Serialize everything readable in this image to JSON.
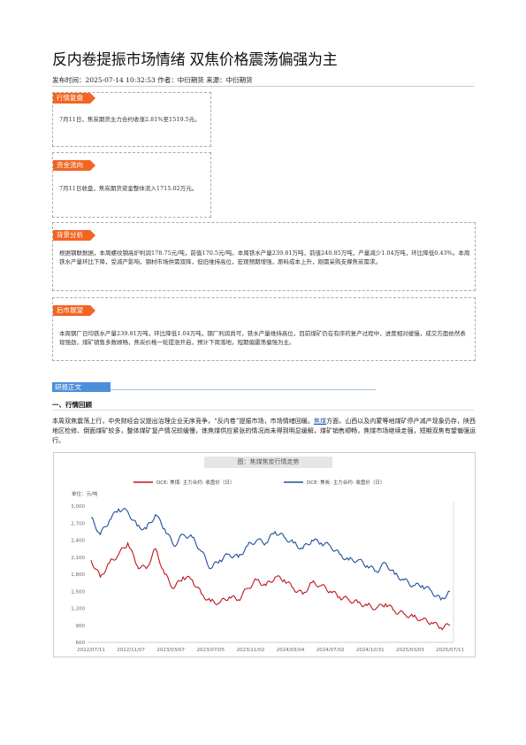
{
  "article": {
    "title": "反内卷提振市场情绪 双焦价格震荡偏强为主",
    "meta": "发布时间：2025-07-14 10:32:53 作者：中衍期货 来源：中衍期货"
  },
  "boxes": [
    {
      "tag": "行情复盘",
      "text": "7月11日，焦炭期货主力合约收涨2.81%至1519.5元。"
    },
    {
      "tag": "资金流向",
      "text": "7月11日收盘，焦炭期货资金整体流入1715.02万元。"
    },
    {
      "tag": "背景分析",
      "text": "根据钢联数据，本周螺纹钢高炉利润178.75元/吨，前值170.5元/吨。本周铁水产量239.81万吨，前值240.85万吨，产量减少1.04万吨，环比降低0.43%。本周铁水产量环比下降，受减产影响，钢材市场供需双降，但旧维持高位，宏观预期增强，原料成本上升，刚需采购支撑焦炭需求。"
    },
    {
      "tag": "后市展望",
      "text": "本周钢厂日均铁水产量239.81万吨，环比降低1.04万吨，钢厂利润尚可，铁水产量维持高位，目前煤矿仍在有序的复产过程中，进度相对缓慢，成交方面依然表现强劲，煤矿销售多数顺畅，焦炭价格一轮提涨开启，预计下周落地，短期偏震荡偏强为主。"
    }
  ],
  "body": {
    "section_tag": "研报正文",
    "heading": "一、行情回顾",
    "para_before": "本周双焦震荡上行，中央财经会议提出治理企业无序竞争，“反内卷”提振市场，市场情绪回暖。",
    "para_link": "焦煤",
    "para_after": "方面，山西以及内蒙等地煤矿停产减产现象仍存，陕西地区检修、倒面煤矿较多，整体煤矿复产情况较缓慢，炼焦煤供应紧张的情况尚未得到明显缓解，煤矿销售顺畅，焦煤市场继续走强，短期双焦有望偏强运行。"
  },
  "chart_data": {
    "type": "line",
    "title": "图：焦煤焦炭行情走势",
    "ylabel": "单位：元/吨",
    "ylim": [
      600,
      3000
    ],
    "yticks": [
      "3,000",
      "2,700",
      "2,400",
      "2,100",
      "1,800",
      "1,500",
      "1,200",
      "900",
      "600"
    ],
    "xticks": [
      "2022/07/11",
      "2022/11/07",
      "2023/03/07",
      "2023/07/05",
      "2023/11/02",
      "2024/03/04",
      "2024/07/02",
      "2024/10/31",
      "2025/03/03",
      "2025/07/11"
    ],
    "series": [
      {
        "name": "DCE: 焦煤: 主力合约: 收盘价（日）",
        "color": "#c0151b",
        "values": [
          2050,
          1750,
          2000,
          2150,
          2350,
          1950,
          1900,
          2250,
          1800,
          1550,
          1750,
          1700,
          1450,
          1320,
          1300,
          1400,
          1350,
          1550,
          1700,
          1600,
          1750,
          1700,
          1550,
          1450,
          1650,
          1600,
          1500,
          1400,
          1350,
          1300,
          1250,
          1200,
          1280,
          1150,
          1100,
          1050,
          1000,
          950,
          860,
          900
        ]
      },
      {
        "name": "DCE: 焦炭: 主力合约: 收盘价（日）",
        "color": "#1f4e9c",
        "values": [
          2800,
          2500,
          2750,
          2950,
          2900,
          2650,
          2600,
          2850,
          2600,
          2300,
          2500,
          2450,
          2200,
          1900,
          2050,
          2150,
          2100,
          2300,
          2400,
          2350,
          2550,
          2450,
          2350,
          2250,
          2400,
          2350,
          2300,
          2150,
          2050,
          2050,
          1950,
          1850,
          2000,
          1800,
          1700,
          1600,
          1600,
          1500,
          1350,
          1500
        ]
      }
    ]
  }
}
